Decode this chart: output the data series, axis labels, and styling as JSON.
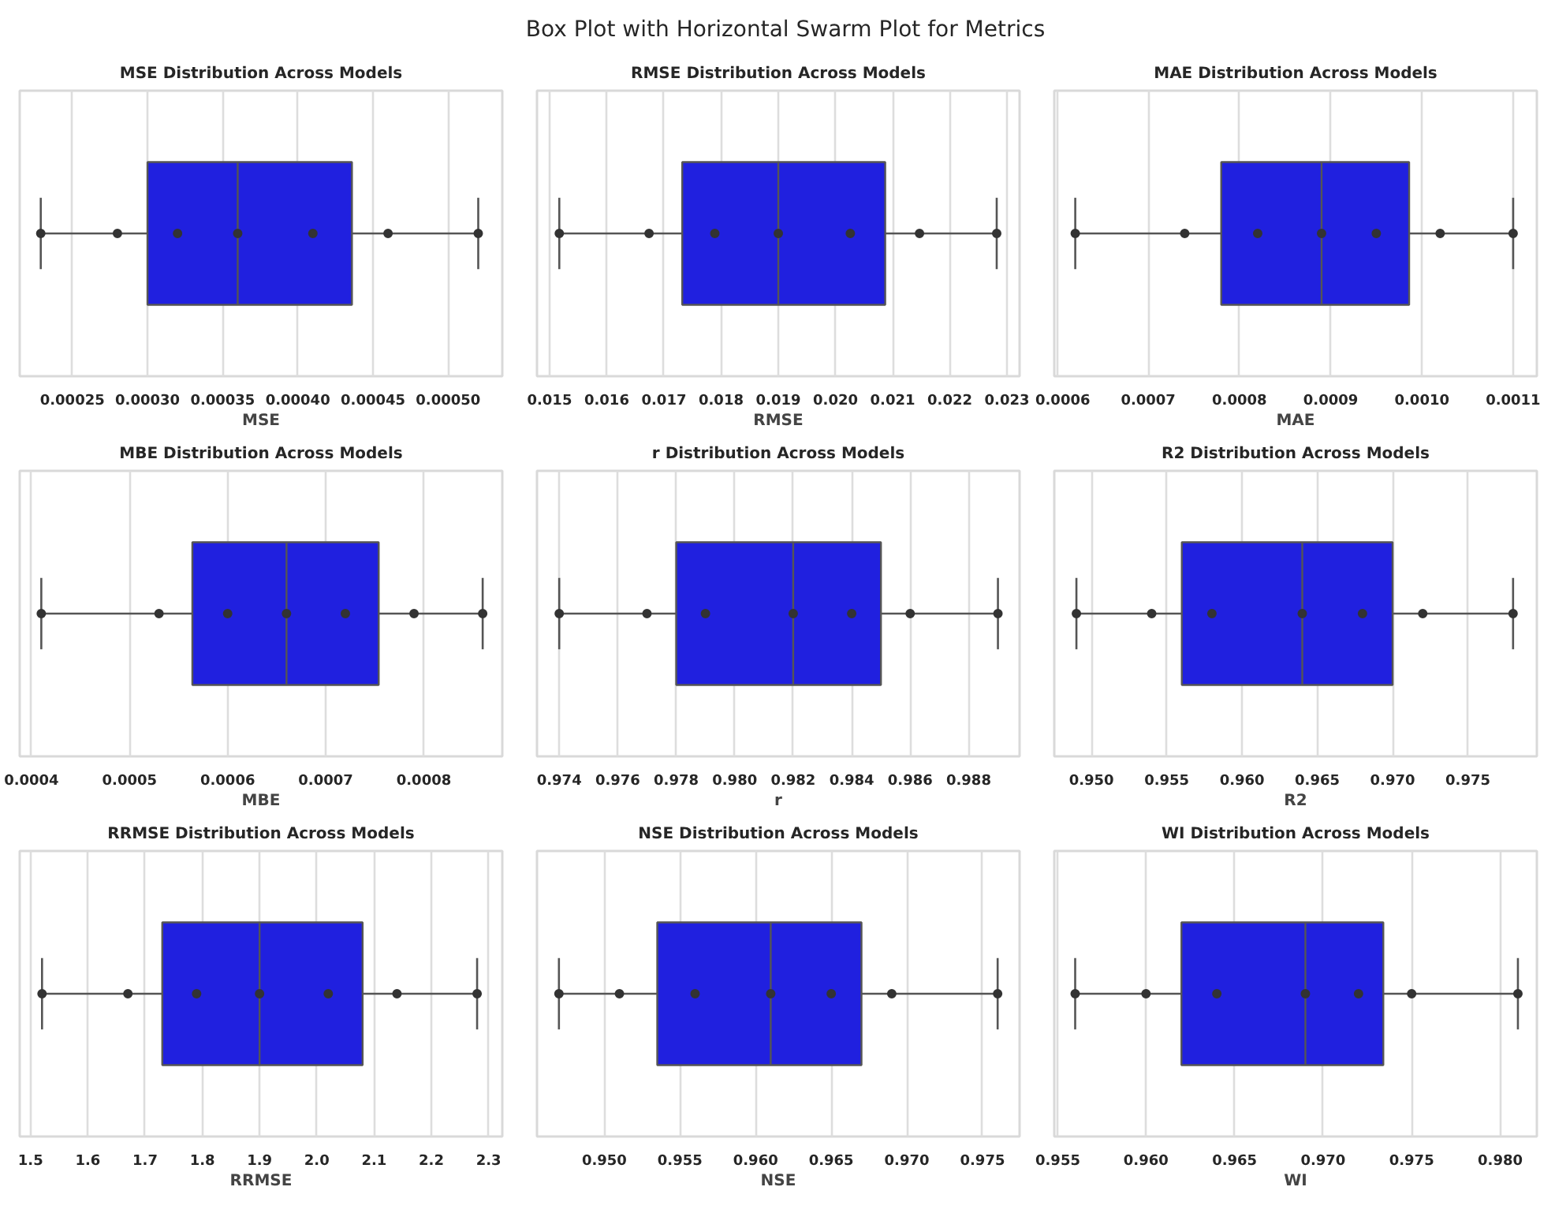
{
  "chart_data": [
    {
      "type": "other",
      "title": "Box Plot with Horizontal Swarm Plot for Metrics"
    },
    {
      "type": "box",
      "orientation": "horizontal",
      "title": "MSE Distribution Across Models",
      "xlabel": "MSE",
      "categories": [
        null
      ],
      "colors": [
        "#2020df"
      ],
      "boxes": [
        {
          "low": 0.000229,
          "q1": 0.0003,
          "median": 0.00036,
          "q3": 0.000436,
          "high": 0.00052
        }
      ],
      "series": [
        {
          "type": "scatter",
          "color": "#333333",
          "x": [
            null,
            null,
            null,
            null,
            null,
            null,
            null
          ],
          "values": [
            0.000229,
            0.00028,
            0.00032,
            0.00036,
            0.00041,
            0.00046,
            0.00052
          ]
        }
      ],
      "xlim": [
        0.000215,
        0.000536
      ],
      "xticks": [
        0.00025,
        {
          "value": 0.0003,
          "label": "0.00030"
        },
        0.00035,
        {
          "value": 0.0004,
          "label": "0.00040"
        },
        0.00045,
        {
          "value": 0.0005,
          "label": "0.00050"
        }
      ],
      "grid": "x",
      "tick_labels": "x",
      "marker": "circle"
    },
    {
      "type": "box",
      "orientation": "horizontal",
      "title": "RMSE Distribution Across Models",
      "xlabel": "RMSE",
      "categories": [
        null
      ],
      "colors": [
        "#2020df"
      ],
      "boxes": [
        {
          "low": 0.01517,
          "q1": 0.01732,
          "median": 0.019,
          "q3": 0.02087,
          "high": 0.02282
        }
      ],
      "series": [
        {
          "type": "scatter",
          "color": "#333333",
          "x": [
            null,
            null,
            null,
            null,
            null,
            null,
            null
          ],
          "values": [
            0.01517,
            0.01674,
            0.01789,
            0.019,
            0.02026,
            0.02147,
            0.02282
          ]
        }
      ],
      "xlim": [
        0.01478,
        0.02322
      ],
      "xticks": [
        0.015,
        0.016,
        0.017,
        0.018,
        0.019,
        {
          "value": 0.02,
          "label": "0.020"
        },
        0.021,
        0.022,
        0.023
      ],
      "grid": "x",
      "tick_labels": "x",
      "marker": "circle"
    },
    {
      "type": "box",
      "orientation": "horizontal",
      "title": "MAE Distribution Across Models",
      "xlabel": "MAE",
      "categories": [
        null
      ],
      "colors": [
        "#2020df"
      ],
      "boxes": [
        {
          "low": 0.00062,
          "q1": 0.00078,
          "median": 0.00089,
          "q3": 0.000986,
          "high": 0.0011
        }
      ],
      "series": [
        {
          "type": "scatter",
          "color": "#333333",
          "x": [
            null,
            null,
            null,
            null,
            null,
            null,
            null
          ],
          "values": [
            0.00062,
            0.00074,
            0.00082,
            0.00089,
            0.00095,
            0.00102,
            0.0011
          ]
        }
      ],
      "xlim": [
        0.000597,
        0.001126
      ],
      "xticks": [
        0.0006,
        0.0007,
        0.0008,
        0.0009,
        {
          "value": 0.001,
          "label": "0.0010"
        },
        0.0011
      ],
      "grid": "x",
      "tick_labels": "x",
      "marker": "circle"
    },
    {
      "type": "box",
      "orientation": "horizontal",
      "title": "MBE Distribution Across Models",
      "xlabel": "MBE",
      "categories": [
        null
      ],
      "colors": [
        "#2020df"
      ],
      "boxes": [
        {
          "low": 0.00041,
          "q1": 0.000564,
          "median": 0.00066,
          "q3": 0.000754,
          "high": 0.00086
        }
      ],
      "series": [
        {
          "type": "scatter",
          "color": "#333333",
          "x": [
            null,
            null,
            null,
            null,
            null,
            null,
            null
          ],
          "values": [
            0.00041,
            0.00053,
            0.0006,
            0.00066,
            0.00072,
            0.00079,
            0.00086
          ]
        }
      ],
      "xlim": [
        0.000388,
        0.00088
      ],
      "xticks": [
        0.0004,
        0.0005,
        0.0006,
        0.0007,
        0.0008
      ],
      "grid": "x",
      "tick_labels": "x",
      "marker": "circle"
    },
    {
      "type": "box",
      "orientation": "horizontal",
      "title": "r Distribution Across Models",
      "xlabel": "r",
      "categories": [
        null
      ],
      "colors": [
        "#2020df"
      ],
      "boxes": [
        {
          "low": 0.974,
          "q1": 0.978,
          "median": 0.982,
          "q3": 0.985,
          "high": 0.989
        }
      ],
      "series": [
        {
          "type": "scatter",
          "color": "#333333",
          "x": [
            null,
            null,
            null,
            null,
            null,
            null,
            null
          ],
          "values": [
            0.974,
            0.977,
            0.979,
            0.982,
            0.984,
            0.986,
            0.989
          ]
        }
      ],
      "xlim": [
        0.97324,
        0.98974
      ],
      "xticks": [
        0.974,
        0.976,
        0.978,
        {
          "value": 0.98,
          "label": "0.980"
        },
        0.982,
        0.984,
        0.986,
        0.988
      ],
      "grid": "x",
      "tick_labels": "x",
      "marker": "circle"
    },
    {
      "type": "box",
      "orientation": "horizontal",
      "title": "R2 Distribution Across Models",
      "xlabel": "R2",
      "categories": [
        null
      ],
      "colors": [
        "#2020df"
      ],
      "boxes": [
        {
          "low": 0.949,
          "q1": 0.956,
          "median": 0.964,
          "q3": 0.97,
          "high": 0.978
        }
      ],
      "series": [
        {
          "type": "scatter",
          "color": "#333333",
          "x": [
            null,
            null,
            null,
            null,
            null,
            null,
            null
          ],
          "values": [
            0.949,
            0.954,
            0.958,
            0.964,
            0.968,
            0.972,
            0.978
          ]
        }
      ],
      "xlim": [
        0.94753,
        0.97958
      ],
      "xticks": [
        {
          "value": 0.95,
          "label": "0.950"
        },
        0.955,
        {
          "value": 0.96,
          "label": "0.960"
        },
        0.965,
        {
          "value": 0.97,
          "label": "0.970"
        },
        0.975
      ],
      "grid": "x",
      "tick_labels": "x",
      "marker": "circle"
    },
    {
      "type": "box",
      "orientation": "horizontal",
      "title": "RRMSE Distribution Across Models",
      "xlabel": "RRMSE",
      "categories": [
        null
      ],
      "colors": [
        "#2020df"
      ],
      "boxes": [
        {
          "low": 1.52,
          "q1": 1.73,
          "median": 1.9,
          "q3": 2.08,
          "high": 2.28
        }
      ],
      "series": [
        {
          "type": "scatter",
          "color": "#333333",
          "x": [
            null,
            null,
            null,
            null,
            null,
            null,
            null
          ],
          "values": [
            1.52,
            1.67,
            1.79,
            1.9,
            2.02,
            2.14,
            2.28
          ]
        }
      ],
      "xlim": [
        1.481,
        2.324
      ],
      "xticks": [
        1.5,
        1.6,
        1.7,
        1.8,
        1.9,
        {
          "value": 2,
          "label": "2.0"
        },
        2.1,
        2.2,
        2.3
      ],
      "grid": "x",
      "tick_labels": "x",
      "marker": "circle"
    },
    {
      "type": "box",
      "orientation": "horizontal",
      "title": "NSE Distribution Across Models",
      "xlabel": "NSE",
      "categories": [
        null
      ],
      "colors": [
        "#2020df"
      ],
      "boxes": [
        {
          "low": 0.947,
          "q1": 0.9535,
          "median": 0.961,
          "q3": 0.967,
          "high": 0.976
        }
      ],
      "series": [
        {
          "type": "scatter",
          "color": "#333333",
          "x": [
            null,
            null,
            null,
            null,
            null,
            null,
            null
          ],
          "values": [
            0.947,
            0.951,
            0.956,
            0.961,
            0.965,
            0.969,
            0.976
          ]
        }
      ],
      "xlim": [
        0.94555,
        0.97745
      ],
      "xticks": [
        {
          "value": 0.95,
          "label": "0.950"
        },
        0.955,
        {
          "value": 0.96,
          "label": "0.960"
        },
        0.965,
        {
          "value": 0.97,
          "label": "0.970"
        },
        0.975
      ],
      "grid": "x",
      "tick_labels": "x",
      "marker": "circle"
    },
    {
      "type": "box",
      "orientation": "horizontal",
      "title": "WI Distribution Across Models",
      "xlabel": "WI",
      "categories": [
        null
      ],
      "colors": [
        "#2020df"
      ],
      "boxes": [
        {
          "low": 0.956,
          "q1": 0.962,
          "median": 0.969,
          "q3": 0.9734,
          "high": 0.981
        }
      ],
      "series": [
        {
          "type": "scatter",
          "color": "#333333",
          "x": [
            null,
            null,
            null,
            null,
            null,
            null,
            null
          ],
          "values": [
            0.956,
            0.96,
            0.964,
            0.969,
            0.972,
            0.975,
            0.981
          ]
        }
      ],
      "xlim": [
        0.95482,
        0.98207
      ],
      "xticks": [
        0.955,
        {
          "value": 0.96,
          "label": "0.960"
        },
        0.965,
        {
          "value": 0.97,
          "label": "0.970"
        },
        0.975,
        {
          "value": 0.98,
          "label": "0.980"
        }
      ],
      "grid": "x",
      "tick_labels": "x",
      "marker": "circle"
    }
  ]
}
